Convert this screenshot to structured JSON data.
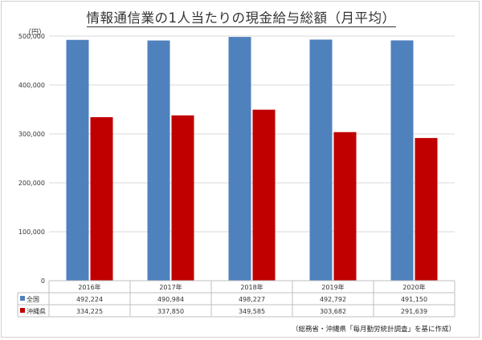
{
  "title": "情報通信業の1人当たりの現金給与総額（月平均）",
  "unit": "（円）",
  "source": "（総務省・沖縄県「毎月勤労統計調査」を基に作成）",
  "chart_data": {
    "type": "bar",
    "title": "情報通信業の1人当たりの現金給与総額（月平均）",
    "ylabel": "円",
    "ylim": [
      0,
      500000
    ],
    "yticks": [
      "0",
      "100,000",
      "200,000",
      "300,000",
      "400,000",
      "500,000"
    ],
    "ytick_values": [
      0,
      100000,
      200000,
      300000,
      400000,
      500000
    ],
    "categories": [
      "2016年",
      "2017年",
      "2018年",
      "2019年",
      "2020年"
    ],
    "series": [
      {
        "name": "全国",
        "color": "#4f81bd",
        "values": [
          492224,
          490984,
          498227,
          492792,
          491150
        ],
        "labels": [
          "492,224",
          "490,984",
          "498,227",
          "492,792",
          "491,150"
        ]
      },
      {
        "name": "沖縄県",
        "color": "#c00000",
        "values": [
          334225,
          337850,
          349585,
          303682,
          291639
        ],
        "labels": [
          "334,225",
          "337,850",
          "349,585",
          "303,682",
          "291,639"
        ]
      }
    ],
    "grid": true,
    "legend": "data-table"
  }
}
